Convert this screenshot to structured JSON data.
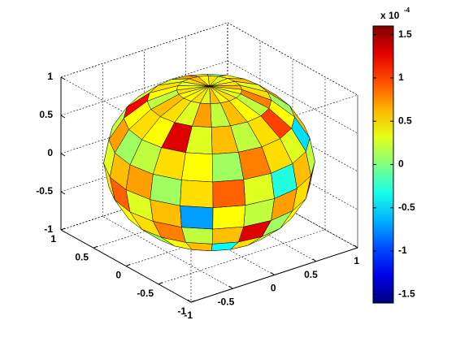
{
  "chart_data": {
    "type": "surface",
    "shape": "sphere",
    "xlim": [
      -1,
      1
    ],
    "ylim": [
      -1,
      1
    ],
    "zlim": [
      -1,
      1
    ],
    "xticks": [
      -1,
      -0.5,
      0,
      0.5,
      1
    ],
    "yticks": [
      -1,
      -0.5,
      0,
      0.5,
      1
    ],
    "zticks": [
      -1,
      -0.5,
      0,
      0.5,
      1
    ],
    "grid": true,
    "colormap": "jet",
    "clim": [
      -1.6,
      1.6
    ],
    "cticks": [
      -1.5,
      -1,
      -0.5,
      0,
      0.5,
      1,
      1.5
    ],
    "colorbar_label": "x 10",
    "colorbar_exponent": "-4",
    "values": [
      [
        0.3,
        0.5,
        0.1,
        0.6,
        0.4,
        -0.2,
        0.5,
        0.7,
        0.2,
        0.4,
        0.6,
        0.1,
        0.3,
        0.5,
        0.8,
        0.2,
        0.4,
        0.0,
        0.6,
        0.3
      ],
      [
        0.6,
        0.2,
        1.2,
        0.4,
        -0.6,
        0.5,
        0.3,
        0.1,
        0.7,
        0.9,
        0.2,
        0.4,
        -0.3,
        0.6,
        0.5,
        0.2,
        1.1,
        0.4,
        0.3,
        0.5
      ],
      [
        0.1,
        0.4,
        0.6,
        -0.4,
        0.5,
        0.3,
        0.9,
        0.2,
        0.5,
        0.4,
        -0.8,
        0.6,
        0.3,
        0.7,
        0.1,
        0.5,
        0.4,
        0.8,
        0.2,
        0.6
      ],
      [
        0.5,
        0.8,
        0.2,
        0.6,
        1.3,
        0.1,
        0.4,
        0.6,
        -0.2,
        0.5,
        0.7,
        0.3,
        1.0,
        0.2,
        0.6,
        -0.5,
        0.3,
        0.5,
        0.7,
        0.4
      ],
      [
        0.3,
        0.6,
        -0.7,
        0.4,
        0.2,
        0.7,
        0.5,
        1.4,
        0.3,
        0.6,
        0.1,
        0.5,
        0.4,
        -0.6,
        0.8,
        0.3,
        0.6,
        0.2,
        0.5,
        0.9
      ],
      [
        0.7,
        0.1,
        0.5,
        0.9,
        0.3,
        -0.3,
        0.6,
        0.2,
        0.4,
        1.2,
        0.5,
        0.3,
        0.7,
        0.5,
        0.1,
        0.6,
        -1.0,
        0.4,
        0.3,
        0.6
      ],
      [
        0.2,
        0.5,
        0.4,
        0.1,
        0.8,
        0.5,
        0.3,
        -0.5,
        0.6,
        0.4,
        0.9,
        0.2,
        0.5,
        1.1,
        0.3,
        0.4,
        0.6,
        0.2,
        0.7,
        0.1
      ],
      [
        0.4,
        1.3,
        0.3,
        0.6,
        0.2,
        0.5,
        1.0,
        0.4,
        0.1,
        0.7,
        0.3,
        -0.4,
        0.6,
        0.2,
        0.5,
        0.8,
        0.3,
        1.2,
        0.4,
        0.5
      ],
      [
        0.5,
        0.3,
        0.7,
        0.2,
        0.6,
        0.4,
        0.2,
        0.8,
        0.5,
        0.3,
        0.6,
        0.4,
        0.1,
        0.5,
        0.7,
        0.3,
        0.5,
        0.4,
        0.2,
        0.6
      ],
      [
        0.4,
        0.5,
        0.3,
        0.6,
        0.4,
        0.5,
        0.3,
        0.4,
        0.6,
        0.5,
        0.4,
        0.3,
        0.5,
        0.4,
        0.6,
        0.5,
        0.3,
        0.4,
        0.5,
        0.4
      ]
    ]
  }
}
